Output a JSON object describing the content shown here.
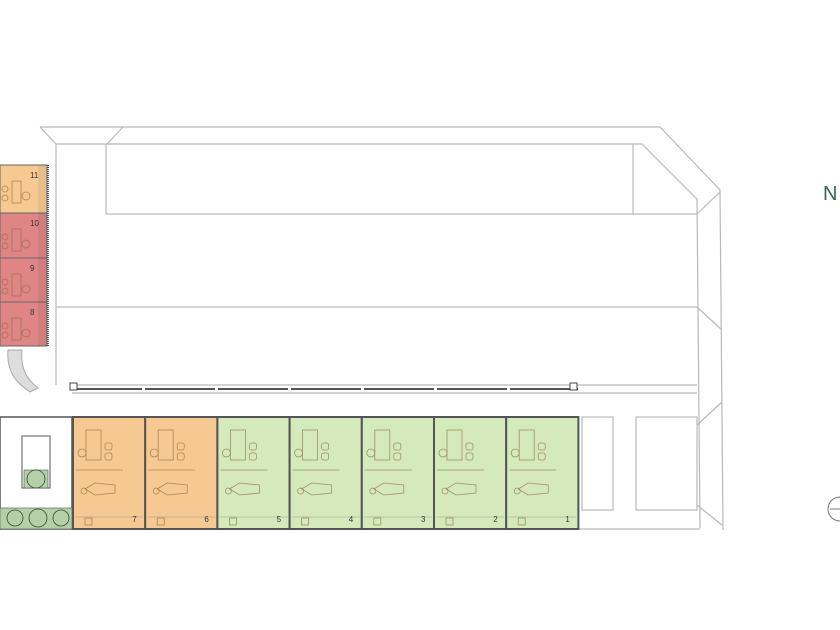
{
  "plan": {
    "north_label": "N",
    "colors": {
      "orange": "#f6c992",
      "green": "#d4eabb",
      "red": "#e08585",
      "fan": "#b5cfa8",
      "north": "#2e6b4f"
    },
    "bottom_rooms": [
      {
        "label": "7",
        "status": "orange"
      },
      {
        "label": "6",
        "status": "orange"
      },
      {
        "label": "5",
        "status": "green"
      },
      {
        "label": "4",
        "status": "green"
      },
      {
        "label": "3",
        "status": "green"
      },
      {
        "label": "2",
        "status": "green"
      },
      {
        "label": "1",
        "status": "green"
      }
    ],
    "left_rooms": [
      {
        "label": "11",
        "status": "orange"
      },
      {
        "label": "10",
        "status": "red"
      },
      {
        "label": "9",
        "status": "red"
      },
      {
        "label": "8",
        "status": "red"
      }
    ]
  }
}
